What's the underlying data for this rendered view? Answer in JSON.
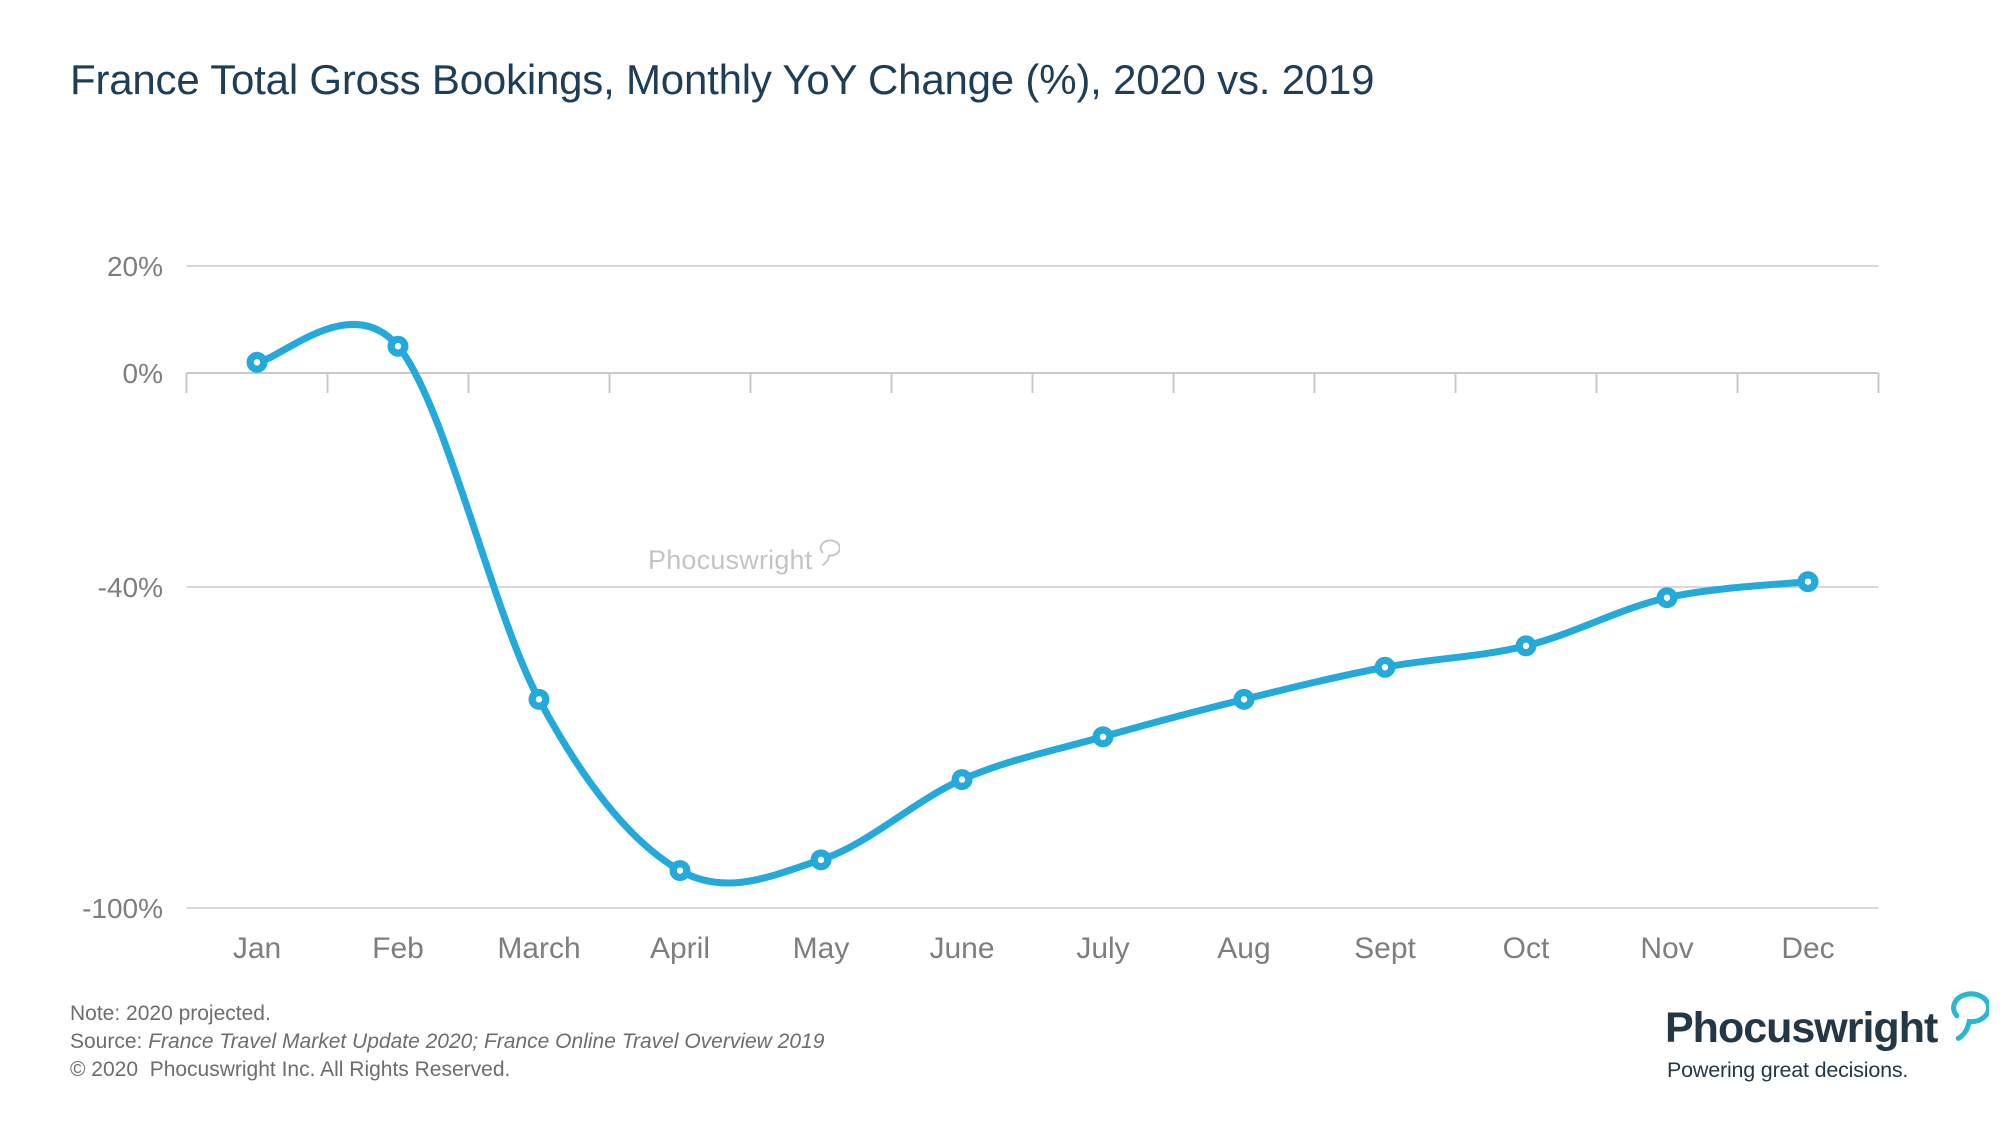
{
  "title": "France Total Gross Bookings, Monthly YoY Change (%), 2020 vs. 2019",
  "watermark": {
    "text": "Phocuswright",
    "icon": "speech-bubble-icon"
  },
  "chart_data": {
    "type": "line",
    "title": "France Total Gross Bookings, Monthly YoY Change (%), 2020 vs. 2019",
    "categories": [
      "Jan",
      "Feb",
      "March",
      "April",
      "May",
      "June",
      "July",
      "Aug",
      "Sept",
      "Oct",
      "Nov",
      "Dec"
    ],
    "series": [
      {
        "name": "Monthly YoY Change (%), 2020 vs. 2019",
        "values": [
          2,
          5,
          -61,
          -93,
          -91,
          -76,
          -68,
          -61,
          -55,
          -51,
          -42,
          -39
        ]
      }
    ],
    "xlabel": "",
    "ylabel": "",
    "y_ticks": [
      {
        "label": "20%",
        "value": 20
      },
      {
        "label": "0%",
        "value": 0
      },
      {
        "label": "-40%",
        "value": -40
      },
      {
        "label": "-100%",
        "value": -100
      }
    ],
    "ylim": [
      -100,
      20
    ],
    "grid": "horizontal-only",
    "legend": "none",
    "line_color": "#24A9DB",
    "marker_style": "filled-circle-with-white-center",
    "smoothing": "spline"
  },
  "footer": {
    "note": "Note: 2020 projected.",
    "source_label": "Source: ",
    "source_titles": "France Travel Market Update 2020; France Online Travel Overview 2019",
    "copyright": "© 2020  Phocuswright Inc. All Rights Reserved."
  },
  "logo": {
    "name": "Phocuswright",
    "tagline": "Powering great decisions.",
    "icon": "speech-bubble-icon"
  },
  "colors": {
    "title_navy": "#1E3D58",
    "line_cyan": "#24A9DB",
    "gridline_gray": "#D8D8D8",
    "axis_line_gray": "#C9C9C9",
    "axis_label_gray": "#7E7E7E",
    "footer_gray": "#6D6D6D",
    "watermark_gray": "#C4C4C4",
    "logo_navy": "#243746",
    "logo_cyan": "#2BB7D0"
  }
}
